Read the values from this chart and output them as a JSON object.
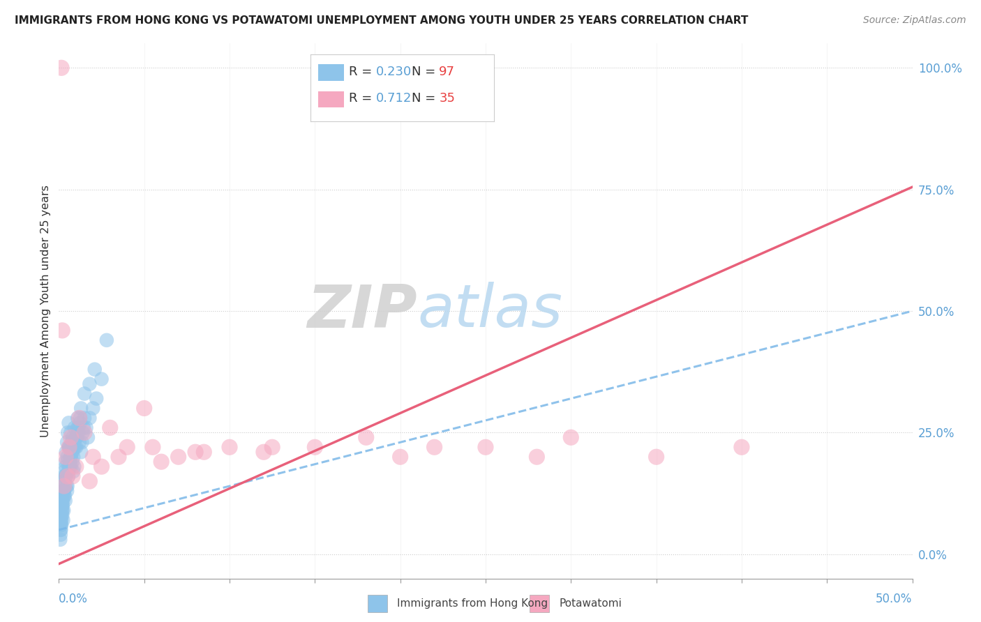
{
  "title": "IMMIGRANTS FROM HONG KONG VS POTAWATOMI UNEMPLOYMENT AMONG YOUTH UNDER 25 YEARS CORRELATION CHART",
  "source": "Source: ZipAtlas.com",
  "ylabel": "Unemployment Among Youth under 25 years",
  "xlim": [
    0,
    50
  ],
  "ylim": [
    -5,
    105
  ],
  "yticks": [
    0,
    25,
    50,
    75,
    100
  ],
  "ytick_labels": [
    "0.0%",
    "25.0%",
    "50.0%",
    "75.0%",
    "100.0%"
  ],
  "xticks": [
    0,
    5,
    10,
    15,
    20,
    25,
    30,
    35,
    40,
    45,
    50
  ],
  "r_blue": 0.23,
  "n_blue": 97,
  "r_pink": 0.712,
  "n_pink": 35,
  "blue_color": "#8EC4EA",
  "pink_color": "#F5A8C0",
  "trend_blue_color": "#7BB8E8",
  "trend_pink_color": "#E8607A",
  "legend_label_blue": "Immigrants from Hong Kong",
  "legend_label_pink": "Potawatomi",
  "blue_trend_intercept": 5.0,
  "blue_trend_slope": 0.9,
  "pink_trend_intercept": -2.0,
  "pink_trend_slope": 1.55,
  "blue_x": [
    0.1,
    0.15,
    0.12,
    0.08,
    0.2,
    0.25,
    0.18,
    0.1,
    0.3,
    0.2,
    0.15,
    0.22,
    0.18,
    0.12,
    0.3,
    0.35,
    0.28,
    0.4,
    0.45,
    0.38,
    0.5,
    0.55,
    0.48,
    0.6,
    0.65,
    0.7,
    0.75,
    0.8,
    0.85,
    0.9,
    1.0,
    1.1,
    1.2,
    1.3,
    1.4,
    1.5,
    1.6,
    1.7,
    1.8,
    2.0,
    2.2,
    2.5,
    0.4,
    0.5,
    0.6,
    0.3,
    0.2,
    0.15,
    0.1,
    0.08,
    0.12,
    0.18,
    0.22,
    0.28,
    0.32,
    0.38,
    0.42,
    0.48,
    0.52,
    0.58,
    0.62,
    0.68,
    0.72,
    0.82,
    0.92,
    1.02,
    1.15,
    1.25,
    1.35,
    1.45,
    0.35,
    0.25,
    0.15,
    0.1,
    0.2,
    0.3,
    0.4,
    0.5,
    0.6,
    0.7,
    0.8,
    0.9,
    1.0,
    1.1,
    1.3,
    1.5,
    1.8,
    2.1,
    0.55,
    0.65,
    0.75,
    0.85,
    0.95,
    1.05,
    1.15,
    1.25,
    2.8
  ],
  "blue_y": [
    8,
    10,
    6,
    12,
    9,
    7,
    11,
    5,
    13,
    8,
    6,
    10,
    14,
    7,
    16,
    12,
    9,
    18,
    14,
    11,
    20,
    16,
    13,
    22,
    18,
    20,
    23,
    19,
    17,
    22,
    24,
    26,
    23,
    21,
    25,
    28,
    26,
    24,
    28,
    30,
    32,
    36,
    16,
    14,
    18,
    12,
    9,
    7,
    4,
    3,
    5,
    11,
    13,
    15,
    17,
    19,
    21,
    23,
    25,
    27,
    22,
    20,
    18,
    24,
    26,
    22,
    25,
    27,
    23,
    26,
    14,
    11,
    8,
    6,
    10,
    13,
    16,
    19,
    22,
    25,
    21,
    18,
    24,
    28,
    30,
    33,
    35,
    38,
    17,
    19,
    21,
    20,
    22,
    24,
    26,
    28,
    44
  ],
  "pink_x": [
    0.2,
    0.4,
    0.6,
    0.8,
    1.0,
    1.5,
    2.0,
    2.5,
    3.0,
    4.0,
    5.0,
    6.0,
    7.0,
    8.0,
    10.0,
    12.0,
    15.0,
    18.0,
    20.0,
    22.0,
    25.0,
    28.0,
    30.0,
    35.0,
    40.0,
    0.3,
    0.5,
    0.7,
    1.2,
    1.8,
    3.5,
    5.5,
    8.5,
    12.5,
    0.15
  ],
  "pink_y": [
    46,
    20,
    22,
    16,
    18,
    25,
    20,
    18,
    26,
    22,
    30,
    19,
    20,
    21,
    22,
    21,
    22,
    24,
    20,
    22,
    22,
    20,
    24,
    20,
    22,
    14,
    16,
    24,
    28,
    15,
    20,
    22,
    21,
    22,
    100
  ]
}
